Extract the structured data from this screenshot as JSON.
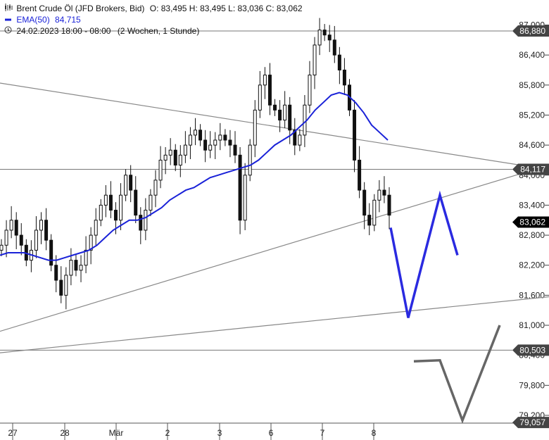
{
  "header": {
    "title": "Brent Crude Öl (JFD Brokers, Bid)",
    "ohlc": "O: 83,495  H: 83,495  L: 83,036  C: 83,062",
    "ema_label": "EMA(50)",
    "ema_value": "84,715",
    "range": "24.02.2023 18:00 - 08:00",
    "interval": "(2 Wochen, 1 Stunde)"
  },
  "colors": {
    "ema": "#1a22d8",
    "scenario_up": "#2a2ae0",
    "scenario_down": "#666666",
    "line": "#888888",
    "label_box": "#444444"
  },
  "chart_data": {
    "type": "candlestick",
    "title": "Brent Crude Öl (JFD Brokers, Bid)",
    "y_ticks": [
      "87,000",
      "86,400",
      "85,800",
      "85,200",
      "84,600",
      "84,000",
      "83,400",
      "82,800",
      "82,200",
      "81,600",
      "81,000",
      "80,400",
      "79,800",
      "79,200"
    ],
    "ylim": [
      78.8,
      87.5
    ],
    "x_ticks": [
      "27",
      "28",
      "Mär",
      "2",
      "3",
      "6",
      "7",
      "8"
    ],
    "price_labels": [
      "86,880",
      "84,117",
      "83,062",
      "80,503",
      "79,057"
    ],
    "horizontal_levels": [
      86.88,
      84.117,
      80.503
    ],
    "ohlc_summary": {
      "open": 83.495,
      "high": 83.495,
      "low": 83.036,
      "close": 83.062
    },
    "ema50_last": 84.715,
    "closes": [
      82.6,
      82.9,
      83.1,
      82.8,
      82.6,
      82.3,
      82.5,
      82.9,
      83.1,
      82.7,
      82.2,
      81.9,
      81.6,
      82.0,
      82.3,
      82.1,
      82.2,
      82.5,
      82.8,
      83.1,
      83.4,
      83.6,
      83.3,
      83.1,
      83.6,
      84.0,
      83.7,
      83.2,
      82.9,
      83.3,
      83.6,
      83.9,
      84.3,
      84.4,
      84.5,
      84.2,
      84.4,
      84.6,
      84.8,
      84.9,
      84.7,
      84.5,
      84.6,
      84.7,
      84.8,
      84.7,
      84.6,
      84.4,
      83.1,
      84.0,
      84.6,
      85.3,
      85.8,
      86.0,
      85.4,
      85.3,
      85.1,
      85.4,
      84.9,
      84.6,
      84.8,
      85.4,
      86.0,
      86.6,
      86.9,
      86.8,
      86.7,
      86.4,
      86.1,
      85.8,
      85.3,
      84.3,
      83.7,
      83.2,
      83.0,
      83.5,
      83.7,
      83.6,
      83.2
    ],
    "ema50": [
      82.4,
      82.45,
      82.45,
      82.45,
      82.4,
      82.35,
      82.3,
      82.3,
      82.35,
      82.4,
      82.45,
      82.5,
      82.6,
      82.75,
      82.9,
      83.0,
      83.1,
      83.1,
      83.15,
      83.25,
      83.35,
      83.5,
      83.6,
      83.7,
      83.75,
      83.85,
      83.95,
      84.0,
      84.05,
      84.1,
      84.15,
      84.2,
      84.3,
      84.45,
      84.6,
      84.7,
      84.8,
      84.95,
      85.1,
      85.3,
      85.45,
      85.6,
      85.65,
      85.6,
      85.45,
      85.25,
      85.0,
      84.85,
      84.7
    ],
    "trendlines": [
      {
        "x1": 0,
        "y1": 85.84,
        "x2": 780,
        "y2": 84.11
      },
      {
        "x1": 0,
        "y1": 80.88,
        "x2": 780,
        "y2": 84.2
      },
      {
        "x1": 0,
        "y1": 80.45,
        "x2": 780,
        "y2": 81.57
      }
    ],
    "scenario_blue": [
      [
        555,
        82.95
      ],
      [
        580,
        81.15
      ],
      [
        625,
        83.6
      ],
      [
        650,
        82.4
      ]
    ],
    "scenario_gray": [
      [
        588,
        80.28
      ],
      [
        625,
        80.3
      ],
      [
        657,
        79.1
      ],
      [
        710,
        81.0
      ]
    ]
  }
}
